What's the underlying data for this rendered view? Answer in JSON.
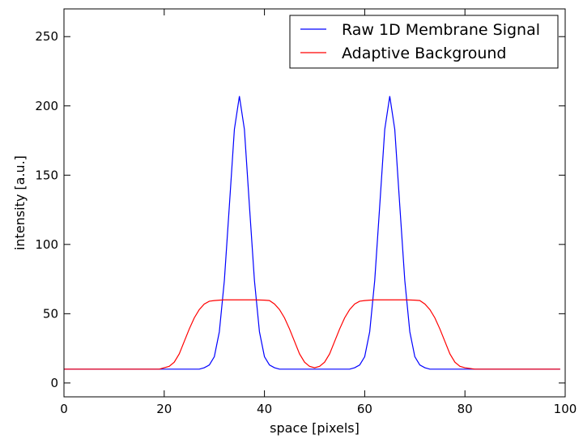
{
  "chart_data": {
    "type": "line",
    "xlabel": "space [pixels]",
    "ylabel": "intensity [a.u.]",
    "xlim": [
      0,
      100
    ],
    "ylim": [
      -10,
      270
    ],
    "x_ticks": [
      0,
      20,
      40,
      60,
      80,
      100
    ],
    "y_ticks": [
      0,
      50,
      100,
      150,
      200,
      250
    ],
    "grid": false,
    "legend_position": "top-right",
    "series": [
      {
        "name": "Raw 1D Membrane Signal",
        "color": "#0000ff",
        "x": [
          0,
          5,
          10,
          15,
          20,
          25,
          27,
          28,
          29,
          30,
          31,
          32,
          33,
          34,
          35,
          36,
          37,
          38,
          39,
          40,
          41,
          42,
          43,
          45,
          50,
          55,
          57,
          58,
          59,
          60,
          61,
          62,
          63,
          64,
          65,
          66,
          67,
          68,
          69,
          70,
          71,
          72,
          73,
          75,
          80,
          85,
          90,
          95,
          99
        ],
        "y": [
          10,
          10,
          10,
          10,
          10,
          10,
          10,
          11,
          13,
          19,
          37,
          74,
          128,
          183,
          207,
          183,
          128,
          74,
          37,
          19,
          13,
          11,
          10,
          10,
          10,
          10,
          10,
          11,
          13,
          19,
          37,
          74,
          128,
          183,
          207,
          183,
          128,
          74,
          37,
          19,
          13,
          11,
          10,
          10,
          10,
          10,
          10,
          10,
          10
        ]
      },
      {
        "name": "Adaptive Background",
        "color": "#ff0000",
        "x": [
          0,
          5,
          10,
          15,
          19,
          20,
          21,
          22,
          23,
          24,
          25,
          26,
          27,
          28,
          29,
          30,
          31,
          32,
          35,
          38,
          40,
          41,
          42,
          43,
          44,
          45,
          46,
          47,
          48,
          49,
          50,
          51,
          52,
          53,
          54,
          55,
          56,
          57,
          58,
          59,
          60,
          61,
          62,
          65,
          68,
          70,
          71,
          72,
          73,
          74,
          75,
          76,
          77,
          78,
          79,
          80,
          81,
          82,
          85,
          90,
          95,
          99
        ],
        "y": [
          10,
          10,
          10,
          10,
          10,
          11,
          12,
          15,
          21,
          30,
          39,
          47,
          53,
          57,
          59,
          59.5,
          59.8,
          60,
          60,
          60,
          59.8,
          59.5,
          57,
          53,
          47,
          39,
          30,
          21,
          15,
          12,
          11,
          12,
          15,
          21,
          30,
          39,
          47,
          53,
          57,
          59,
          59.5,
          59.8,
          60,
          60,
          60,
          59.8,
          59.5,
          57,
          53,
          47,
          39,
          30,
          21,
          15,
          12,
          11,
          10.5,
          10,
          10,
          10,
          10,
          10
        ]
      }
    ]
  }
}
